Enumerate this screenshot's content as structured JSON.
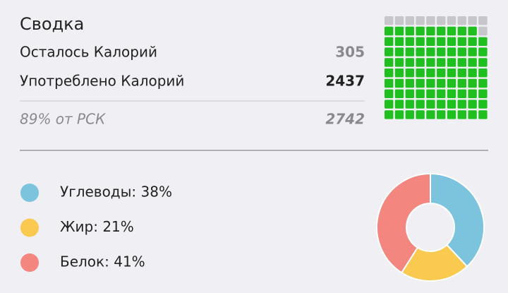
{
  "summary": {
    "title": "Сводка",
    "rows": [
      {
        "label": "Осталось Калорий",
        "value": 305
      },
      {
        "label": "Употреблено Калорий",
        "value": 2437
      },
      {
        "label": "89% от РСК",
        "value": 2742
      }
    ]
  },
  "waffle": {
    "filled": 89,
    "total": 100,
    "columns": 10,
    "filled_color": "#1fbf1f",
    "empty_color": "#c6c6cb"
  },
  "macros": {
    "type": "donut",
    "items": [
      {
        "label": "Углеводы: 38%",
        "value": 38,
        "color": "#7cc4de"
      },
      {
        "label": "Жир: 21%",
        "value": 21,
        "color": "#f9c950"
      },
      {
        "label": "Белок: 41%",
        "value": 41,
        "color": "#f3877f"
      }
    ]
  }
}
